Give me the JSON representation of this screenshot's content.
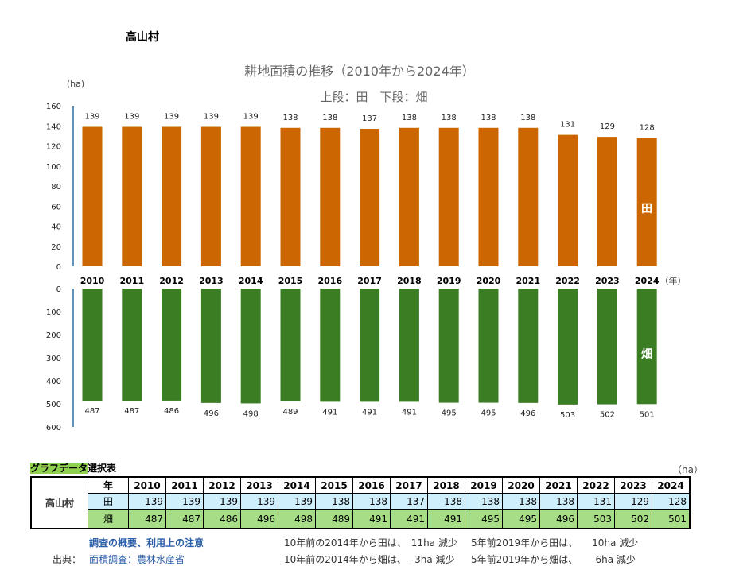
{
  "village": "高山村",
  "chart_data": {
    "type": "bar",
    "title": "耕地面積の推移（2010年から2024年）",
    "subtitle": "上段：田　下段：畑",
    "ylabel": "(ha)",
    "xlabel_unit": "（年）",
    "categories": [
      "2010",
      "2011",
      "2012",
      "2013",
      "2014",
      "2015",
      "2016",
      "2017",
      "2018",
      "2019",
      "2020",
      "2021",
      "2022",
      "2023",
      "2024"
    ],
    "series": [
      {
        "name": "田",
        "color": "#cc6600",
        "values": [
          139,
          139,
          139,
          139,
          139,
          138,
          138,
          137,
          138,
          138,
          138,
          138,
          131,
          129,
          128
        ],
        "ylim": [
          0,
          160
        ],
        "yticks": [
          "0",
          "20",
          "40",
          "60",
          "80",
          "100",
          "120",
          "140",
          "160"
        ],
        "position": "upper"
      },
      {
        "name": "畑",
        "color": "#3a7d22",
        "values": [
          487,
          487,
          486,
          496,
          498,
          489,
          491,
          491,
          491,
          495,
          495,
          496,
          503,
          502,
          501
        ],
        "ylim": [
          0,
          600
        ],
        "yticks": [
          "0",
          "100",
          "200",
          "300",
          "400",
          "500",
          "600"
        ],
        "position": "lower",
        "inverted": true
      }
    ]
  },
  "table": {
    "title_highlight": "グラフデータ",
    "title_rest": "選択表",
    "unit": "（ha）",
    "year_header": "年",
    "row_label_ta": "田",
    "row_label_ha": "畑"
  },
  "notes": {
    "overview_link": "調査の概要、利用上の注意",
    "source_label": "出典：",
    "source_link": "面積調査：農林水産省",
    "line1a": "10年前の2014年から田は、　11ha 減少",
    "line1b": "5年前2019年から田は、　　10ha 減少",
    "line2a": "10年前の2014年から畑は、　-3ha 減少",
    "line2b": "5年前2019年から畑は、　　-6ha 減少"
  }
}
